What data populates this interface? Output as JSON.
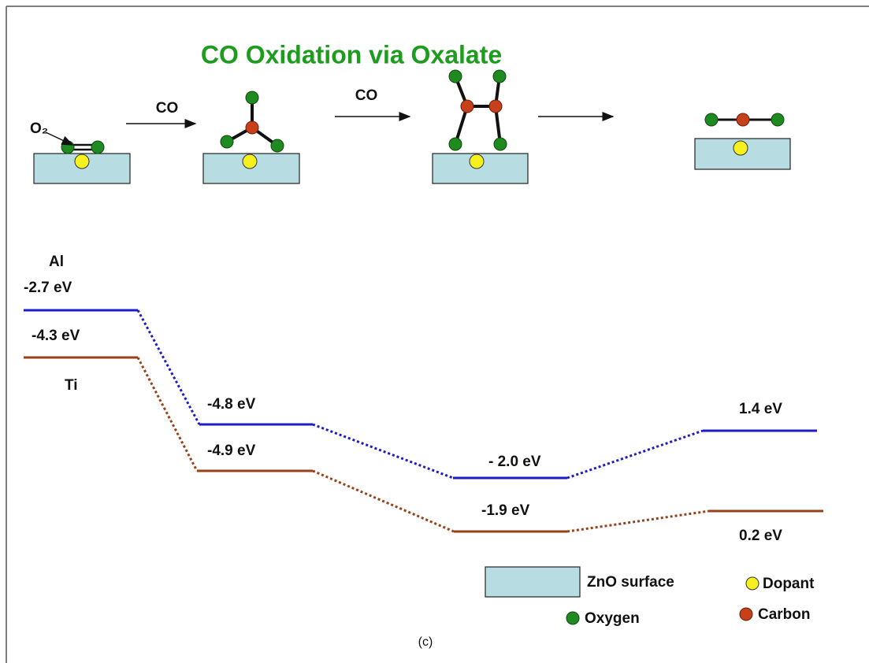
{
  "title": "CO Oxidation via Oxalate",
  "reaction": {
    "o2_label": "O₂",
    "arrow_labels": [
      "CO",
      "CO"
    ]
  },
  "levels": {
    "al": {
      "name": "Al",
      "energies": [
        "-2.7 eV",
        "-4.8 eV",
        "- 2.0 eV",
        "1.4 eV"
      ]
    },
    "ti": {
      "name": "Ti",
      "energies": [
        "-4.3 eV",
        "-4.9 eV",
        "-1.9 eV",
        "0.2 eV"
      ]
    }
  },
  "legend": {
    "surface": "ZnO surface",
    "dopant": "Dopant",
    "oxygen": "Oxygen",
    "carbon": "Carbon"
  },
  "caption": "(c)"
}
